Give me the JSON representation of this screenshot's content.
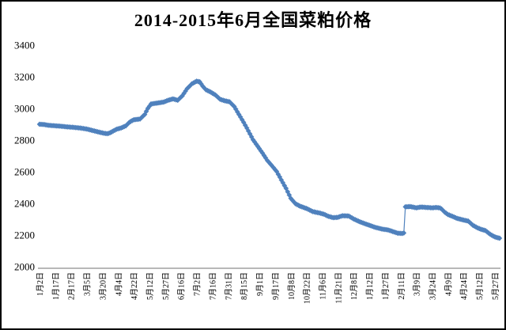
{
  "chart_data": {
    "type": "line",
    "title": "2014-2015年6月全国菜粕价格",
    "marker": "diamond",
    "series_color": "#4f81bd",
    "axis_line_color": "#8e8e8e",
    "text_color": "#000000",
    "background_color": "#ffffff",
    "grid": "off",
    "legend": "none",
    "ylim": [
      2000,
      3400
    ],
    "ytick_interval": 200,
    "yticks": [
      3400,
      3200,
      3000,
      2800,
      2600,
      2400,
      2200,
      2000
    ],
    "categories": [
      "1月2日",
      "1月17日",
      "2月17日",
      "3月5日",
      "3月20日",
      "4月4日",
      "4月22日",
      "5月12日",
      "5月27日",
      "6月16日",
      "7月2日",
      "7月16日",
      "7月31日",
      "8月15日",
      "9月1日",
      "9月17日",
      "10月8日",
      "10月22日",
      "11月6日",
      "11月21日",
      "12月8日",
      "1月12日",
      "1月27日",
      "2月11日",
      "3月9日",
      "3月24日",
      "4月9日",
      "4月24日",
      "5月12日",
      "5月27日"
    ],
    "values_at_ticks": [
      2900,
      2890,
      2880,
      2870,
      2840,
      2870,
      2930,
      3030,
      3040,
      3145,
      3170,
      3095,
      3045,
      2910,
      2745,
      2615,
      2430,
      2370,
      2335,
      2310,
      2300,
      2260,
      2235,
      2210,
      2370,
      2370,
      2330,
      2295,
      2240,
      2190
    ],
    "anchor_points": [
      [
        0,
        2900
      ],
      [
        0.3,
        2898
      ],
      [
        0.6,
        2893
      ],
      [
        1,
        2890
      ],
      [
        1.4,
        2887
      ],
      [
        1.8,
        2883
      ],
      [
        2.2,
        2880
      ],
      [
        2.6,
        2876
      ],
      [
        3,
        2870
      ],
      [
        3.4,
        2860
      ],
      [
        3.8,
        2850
      ],
      [
        4.1,
        2843
      ],
      [
        4.35,
        2840
      ],
      [
        4.6,
        2852
      ],
      [
        4.9,
        2868
      ],
      [
        5.2,
        2877
      ],
      [
        5.5,
        2890
      ],
      [
        5.75,
        2915
      ],
      [
        6,
        2928
      ],
      [
        6.4,
        2933
      ],
      [
        6.7,
        2962
      ],
      [
        6.9,
        3000
      ],
      [
        7.1,
        3028
      ],
      [
        7.5,
        3034
      ],
      [
        7.9,
        3040
      ],
      [
        8.2,
        3052
      ],
      [
        8.5,
        3060
      ],
      [
        8.8,
        3052
      ],
      [
        9.1,
        3080
      ],
      [
        9.4,
        3125
      ],
      [
        9.7,
        3155
      ],
      [
        10,
        3172
      ],
      [
        10.2,
        3168
      ],
      [
        10.4,
        3140
      ],
      [
        10.6,
        3118
      ],
      [
        10.9,
        3103
      ],
      [
        11.2,
        3085
      ],
      [
        11.5,
        3058
      ],
      [
        11.8,
        3048
      ],
      [
        12.1,
        3042
      ],
      [
        12.4,
        3012
      ],
      [
        12.7,
        2962
      ],
      [
        13,
        2912
      ],
      [
        13.3,
        2858
      ],
      [
        13.6,
        2802
      ],
      [
        13.9,
        2760
      ],
      [
        14.2,
        2718
      ],
      [
        14.5,
        2672
      ],
      [
        14.8,
        2638
      ],
      [
        15.1,
        2602
      ],
      [
        15.4,
        2548
      ],
      [
        15.7,
        2495
      ],
      [
        16,
        2432
      ],
      [
        16.3,
        2398
      ],
      [
        16.6,
        2382
      ],
      [
        17,
        2368
      ],
      [
        17.4,
        2348
      ],
      [
        17.8,
        2340
      ],
      [
        18.1,
        2332
      ],
      [
        18.4,
        2318
      ],
      [
        18.7,
        2310
      ],
      [
        19,
        2312
      ],
      [
        19.3,
        2322
      ],
      [
        19.7,
        2320
      ],
      [
        20,
        2302
      ],
      [
        20.3,
        2288
      ],
      [
        20.6,
        2276
      ],
      [
        21,
        2262
      ],
      [
        21.4,
        2248
      ],
      [
        21.8,
        2238
      ],
      [
        22.2,
        2232
      ],
      [
        22.5,
        2222
      ],
      [
        22.8,
        2212
      ],
      [
        23.1,
        2210
      ],
      [
        23.2,
        2213
      ],
      [
        23.28,
        2378
      ],
      [
        23.6,
        2380
      ],
      [
        24,
        2372
      ],
      [
        24.3,
        2377
      ],
      [
        24.7,
        2374
      ],
      [
        25,
        2372
      ],
      [
        25.3,
        2374
      ],
      [
        25.55,
        2370
      ],
      [
        25.8,
        2345
      ],
      [
        26,
        2330
      ],
      [
        26.3,
        2318
      ],
      [
        26.6,
        2305
      ],
      [
        27,
        2295
      ],
      [
        27.3,
        2288
      ],
      [
        27.6,
        2262
      ],
      [
        27.9,
        2245
      ],
      [
        28.15,
        2235
      ],
      [
        28.4,
        2228
      ],
      [
        28.7,
        2205
      ],
      [
        28.95,
        2190
      ],
      [
        29.1,
        2185
      ],
      [
        29.3,
        2180
      ]
    ]
  }
}
